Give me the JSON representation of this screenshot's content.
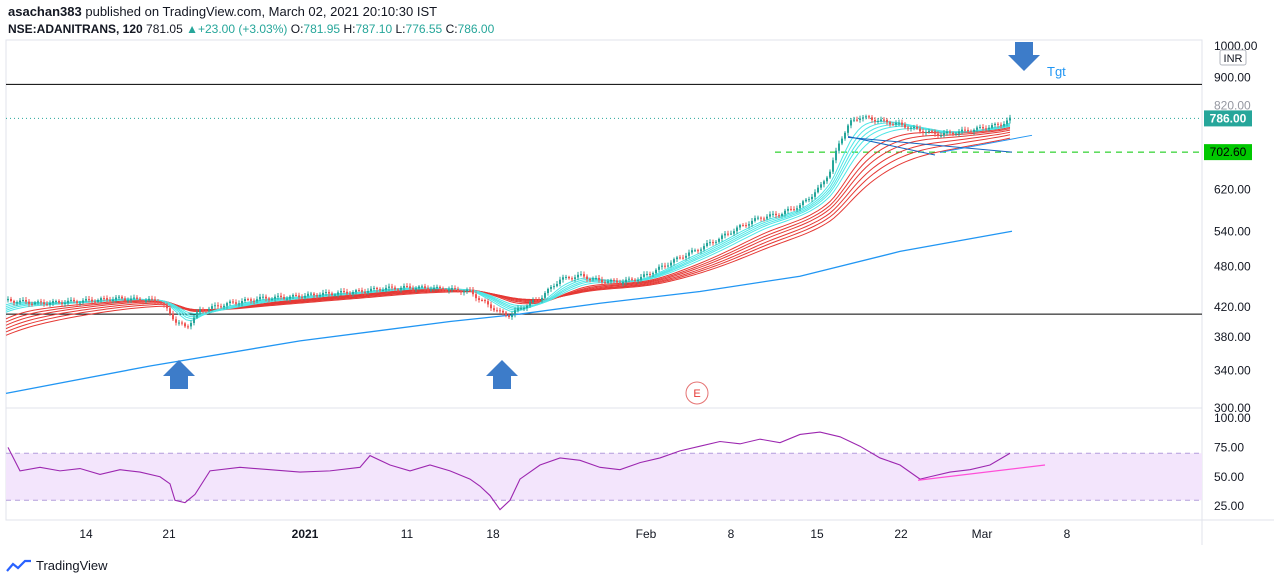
{
  "header": {
    "author": "asachan383",
    "published_text": "published on TradingView.com, March 02, 2021 20:10:30 IST",
    "symbol": "NSE:ADANITRANS, 120",
    "last": "781.05",
    "change": "+23.00 (+3.03%)",
    "o_label": "O:",
    "o": "781.95",
    "h_label": "H:",
    "h": "787.10",
    "l_label": "L:",
    "l": "776.55",
    "c_label": "C:",
    "c": "786.00"
  },
  "footer": {
    "brand": "TradingView"
  },
  "colors": {
    "up": "#26a69a",
    "down": "#ef5350",
    "ema_fast": "#4ee6e6",
    "ema_slow": "#e53935",
    "sma": "#2196f3",
    "rsi": "#9c27b0",
    "rsi_band": "#f3e5fc",
    "arrow": "#3d7cc9",
    "support": "#00c800",
    "trendline": "#ff4fd8"
  },
  "chart_data": {
    "type": "line",
    "price_axis": {
      "currency": "INR",
      "ticks": [
        "1000.00",
        "900.00",
        "820.00",
        "786.00",
        "702.60",
        "620.00",
        "540.00",
        "480.00",
        "420.00",
        "380.00",
        "340.00",
        "300.00"
      ],
      "tick_values": [
        1000,
        900,
        820,
        620,
        540,
        480,
        420,
        380,
        340,
        300
      ],
      "scale": "log",
      "last_price_label": "786.00",
      "level_label": "702.60"
    },
    "time_axis": {
      "ticks": [
        "14",
        "21",
        "2021",
        "11",
        "18",
        "Feb",
        "8",
        "15",
        "22",
        "Mar",
        "8"
      ]
    },
    "rsi_axis": {
      "ticks": [
        "100.00",
        "75.00",
        "50.00",
        "25.00"
      ],
      "band": [
        30,
        70
      ]
    },
    "horizontal_levels": [
      {
        "name": "resistance",
        "value": 880
      },
      {
        "name": "support",
        "value": 410
      },
      {
        "name": "breakout",
        "value": 702.6
      },
      {
        "name": "last",
        "value": 786
      }
    ],
    "price_series": {
      "name": "close",
      "x": [
        0,
        40,
        80,
        120,
        160,
        176,
        186,
        200,
        230,
        260,
        290,
        320,
        360,
        380,
        410,
        440,
        470,
        480,
        500,
        510,
        520,
        540,
        560,
        580,
        600,
        620,
        640,
        660,
        680,
        700,
        720,
        740,
        760,
        780,
        800,
        810,
        820,
        830,
        840,
        850,
        860,
        880,
        900,
        920,
        940,
        960,
        980,
        1000,
        1012
      ],
      "y": [
        430,
        425,
        428,
        432,
        428,
        400,
        392,
        415,
        425,
        432,
        434,
        438,
        442,
        446,
        448,
        446,
        442,
        430,
        412,
        408,
        418,
        432,
        460,
        466,
        458,
        456,
        462,
        478,
        495,
        510,
        528,
        548,
        565,
        572,
        588,
        605,
        625,
        660,
        730,
        775,
        790,
        780,
        770,
        755,
        745,
        752,
        760,
        770,
        786
      ]
    },
    "sma_200": {
      "x": [
        6,
        150,
        300,
        450,
        520,
        600,
        700,
        800,
        900,
        1012
      ],
      "y": [
        315,
        345,
        375,
        400,
        410,
        425,
        442,
        465,
        505,
        540
      ]
    },
    "annotations": [
      {
        "name": "target",
        "text": "Tgt"
      },
      {
        "name": "earnings",
        "text": "E"
      }
    ],
    "rsi_series": {
      "x": [
        8,
        20,
        40,
        60,
        80,
        100,
        120,
        140,
        160,
        170,
        175,
        185,
        195,
        210,
        240,
        270,
        300,
        330,
        360,
        370,
        390,
        410,
        430,
        450,
        470,
        480,
        490,
        500,
        510,
        520,
        540,
        560,
        580,
        600,
        620,
        640,
        660,
        680,
        700,
        720,
        740,
        760,
        780,
        800,
        820,
        840,
        860,
        880,
        900,
        920,
        930,
        950,
        970,
        990,
        1010
      ],
      "y": [
        75,
        55,
        58,
        55,
        57,
        52,
        56,
        54,
        50,
        44,
        30,
        28,
        35,
        55,
        58,
        56,
        54,
        55,
        58,
        68,
        60,
        55,
        60,
        55,
        48,
        42,
        34,
        22,
        30,
        48,
        60,
        66,
        64,
        58,
        56,
        62,
        66,
        72,
        76,
        80,
        78,
        82,
        79,
        86,
        88,
        84,
        76,
        66,
        60,
        48,
        50,
        54,
        56,
        60,
        70
      ]
    },
    "rsi_trendline": {
      "x": [
        918,
        1045
      ],
      "y": [
        47,
        60
      ]
    }
  }
}
